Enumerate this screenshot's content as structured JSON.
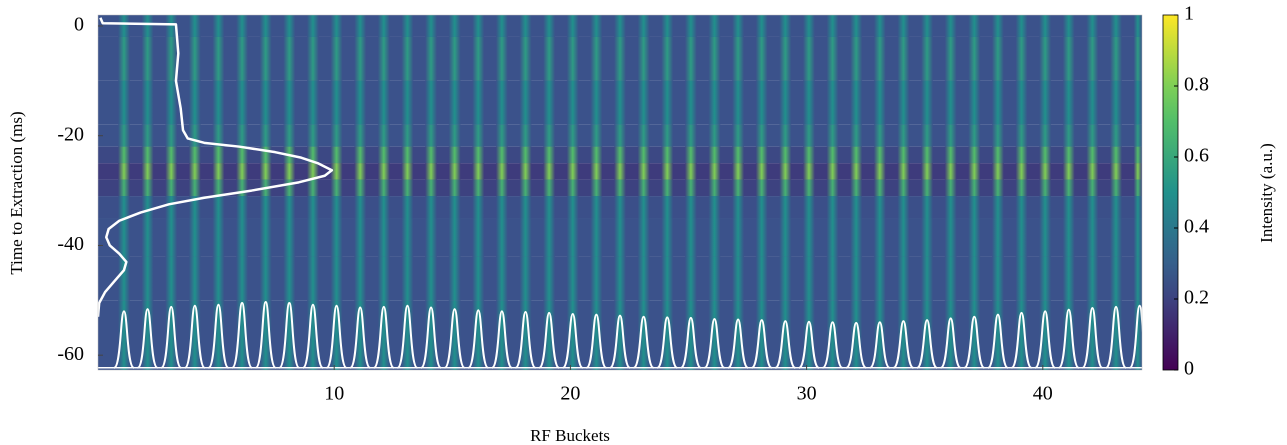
{
  "chart_data": {
    "type": "heatmap",
    "x_label": "RF Buckets",
    "y_label": "Time to Extraction (ms)",
    "xlim": [
      0,
      44.2
    ],
    "xticks": [
      10,
      20,
      30,
      40
    ],
    "ylim": [
      -62.7,
      2
    ],
    "yticks": [
      0,
      -20,
      -40,
      -60
    ],
    "colormap": "viridis",
    "colorbar": {
      "label": "Intensity (a.u.)",
      "lim": [
        0,
        1
      ],
      "ticks": [
        0,
        0.2,
        0.4,
        0.6,
        0.8,
        1
      ]
    },
    "heatmap": {
      "bucket_x": [
        1.1,
        2.1,
        3.1,
        4.1,
        5.1,
        6.1,
        7.1,
        8.1,
        9.1,
        10.1,
        11.1,
        12.1,
        13.1,
        14.1,
        15.1,
        16.1,
        17.1,
        18.1,
        19.1,
        20.1,
        21.1,
        22.1,
        23.1,
        24.1,
        25.1,
        26.1,
        27.1,
        28.1,
        29.1,
        30.1,
        31.1,
        32.1,
        33.1,
        34.1,
        35.1,
        36.1,
        37.1,
        38.1,
        39.1,
        40.1,
        41.1,
        42.1,
        43.1,
        44.1
      ],
      "row_edges": [
        2,
        -2,
        -10,
        -18,
        -22,
        -25,
        -28,
        -31,
        -35,
        -42,
        -50,
        -62.7
      ],
      "stripe_intensity": [
        0.5,
        0.55,
        0.5,
        0.55,
        0.7,
        0.8,
        0.65,
        0.5,
        0.5,
        0.5,
        0.5
      ],
      "background_intensity": [
        0.25,
        0.25,
        0.25,
        0.25,
        0.22,
        0.18,
        0.2,
        0.24,
        0.25,
        0.25,
        0.25
      ]
    },
    "time_profile": {
      "color": "#ffffff",
      "x": [
        0.1,
        0.2,
        3.3,
        3.4,
        3.3,
        3.5,
        3.6,
        3.8,
        4.5,
        6,
        7.5,
        8.6,
        9.3,
        9.9,
        9.6,
        8.5,
        6.5,
        4.5,
        3,
        1.8,
        0.9,
        0.45,
        0.35,
        0.5,
        0.9,
        1.2,
        1.1,
        0.7,
        0.3,
        0.05,
        0
      ],
      "y": [
        1.5,
        0.5,
        0.3,
        -5,
        -10,
        -15,
        -19,
        -20.5,
        -21.3,
        -22,
        -23,
        -24,
        -25,
        -26.3,
        -27.3,
        -28.5,
        -30,
        -31.3,
        -32.5,
        -34,
        -35.5,
        -37,
        -38.5,
        -40,
        -41.5,
        -43,
        -44.5,
        -46.5,
        -48.5,
        -50.5,
        -53
      ]
    },
    "bucket_profile": {
      "color": "#ffffff",
      "baseline": -62.3,
      "y": [
        -52,
        -51.6,
        -51.2,
        -51,
        -50.8,
        -50.5,
        -50.3,
        -50.5,
        -50.8,
        -51,
        -51.3,
        -51.2,
        -51,
        -51.3,
        -51.6,
        -51.8,
        -52,
        -52.1,
        -52.3,
        -52.5,
        -52.6,
        -52.8,
        -53,
        -53.1,
        -53.2,
        -53.4,
        -53.5,
        -53.6,
        -53.8,
        -53.9,
        -54,
        -54.1,
        -54,
        -53.8,
        -53.6,
        -53.3,
        -53,
        -52.6,
        -52.3,
        -52,
        -51.7,
        -51.4,
        -51.2,
        -51
      ]
    }
  }
}
